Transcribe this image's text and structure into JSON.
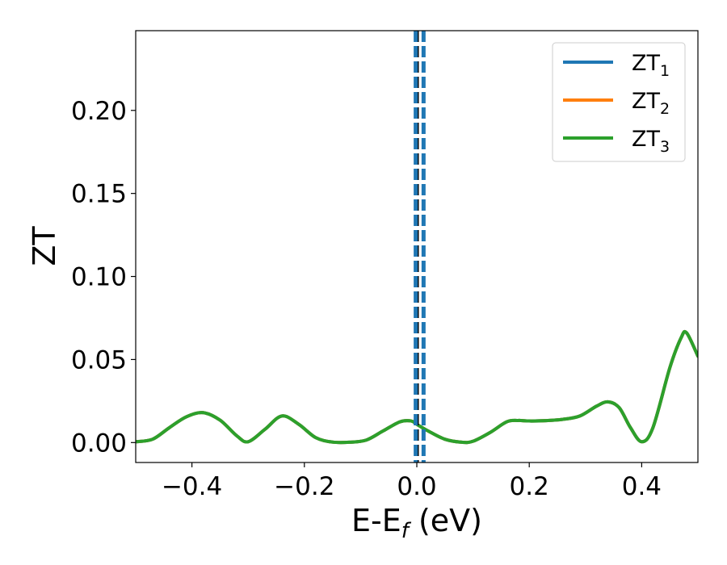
{
  "chart_data": {
    "type": "line",
    "xlabel": {
      "main": "E-E",
      "sub": "f",
      "suffix": " (eV)"
    },
    "ylabel": "ZT",
    "xlim": [
      -0.5,
      0.5
    ],
    "ylim": [
      -0.012,
      0.248
    ],
    "xticks": [
      -0.4,
      -0.2,
      0.0,
      0.2,
      0.4
    ],
    "xtick_labels": [
      "−0.4",
      "−0.2",
      "0.0",
      "0.2",
      "0.4"
    ],
    "yticks": [
      0.0,
      0.05,
      0.1,
      0.15,
      0.2
    ],
    "ytick_labels": [
      "0.00",
      "0.05",
      "0.10",
      "0.15",
      "0.20"
    ],
    "grid": false,
    "legend_position": "top-right",
    "vlines": [
      {
        "x": 0.0,
        "style": "dashed",
        "color": "#000000"
      },
      {
        "x": -0.002,
        "style": "dashed",
        "color": "#1f77b4"
      },
      {
        "x": 0.012,
        "style": "dashed",
        "color": "#1f77b4"
      }
    ],
    "series": [
      {
        "name": "ZT",
        "sub": "1",
        "color": "#1f77b4",
        "x": [
          -0.5,
          -0.47,
          -0.44,
          -0.41,
          -0.38,
          -0.35,
          -0.32,
          -0.3,
          -0.27,
          -0.24,
          -0.21,
          -0.18,
          -0.15,
          -0.12,
          -0.09,
          -0.06,
          -0.03,
          -0.01,
          0.0,
          0.02,
          0.05,
          0.08,
          0.1,
          0.13,
          0.16,
          0.18,
          0.2,
          0.23,
          0.26,
          0.29,
          0.32,
          0.34,
          0.36,
          0.38,
          0.4,
          0.42,
          0.45,
          0.47,
          0.48,
          0.5
        ],
        "y": [
          0.0005,
          0.002,
          0.009,
          0.0155,
          0.018,
          0.0135,
          0.004,
          0.0005,
          0.008,
          0.016,
          0.011,
          0.003,
          0.0003,
          0.0002,
          0.0015,
          0.007,
          0.0125,
          0.013,
          0.011,
          0.007,
          0.002,
          0.0002,
          0.0008,
          0.006,
          0.0125,
          0.0133,
          0.013,
          0.0132,
          0.014,
          0.016,
          0.022,
          0.0245,
          0.021,
          0.009,
          0.0005,
          0.009,
          0.045,
          0.063,
          0.066,
          0.052
        ]
      },
      {
        "name": "ZT",
        "sub": "2",
        "color": "#ff7f0e",
        "x": [
          -0.5,
          -0.47,
          -0.44,
          -0.41,
          -0.38,
          -0.35,
          -0.32,
          -0.3,
          -0.27,
          -0.24,
          -0.21,
          -0.18,
          -0.15,
          -0.12,
          -0.09,
          -0.06,
          -0.03,
          -0.01,
          0.0,
          0.02,
          0.05,
          0.08,
          0.1,
          0.13,
          0.16,
          0.18,
          0.2,
          0.23,
          0.26,
          0.29,
          0.32,
          0.34,
          0.36,
          0.38,
          0.4,
          0.42,
          0.45,
          0.47,
          0.48,
          0.5
        ],
        "y": [
          0.0005,
          0.002,
          0.009,
          0.0155,
          0.018,
          0.0135,
          0.004,
          0.0005,
          0.008,
          0.016,
          0.011,
          0.003,
          0.0003,
          0.0002,
          0.0015,
          0.007,
          0.0125,
          0.013,
          0.011,
          0.007,
          0.002,
          0.0002,
          0.0008,
          0.006,
          0.0125,
          0.0133,
          0.013,
          0.0132,
          0.014,
          0.016,
          0.022,
          0.0245,
          0.021,
          0.009,
          0.0005,
          0.009,
          0.045,
          0.063,
          0.066,
          0.052
        ]
      },
      {
        "name": "ZT",
        "sub": "3",
        "color": "#2ca02c",
        "x": [
          -0.5,
          -0.47,
          -0.44,
          -0.41,
          -0.38,
          -0.35,
          -0.32,
          -0.3,
          -0.27,
          -0.24,
          -0.21,
          -0.18,
          -0.15,
          -0.12,
          -0.09,
          -0.06,
          -0.03,
          -0.01,
          0.0,
          0.02,
          0.05,
          0.08,
          0.1,
          0.13,
          0.16,
          0.18,
          0.2,
          0.23,
          0.26,
          0.29,
          0.32,
          0.34,
          0.36,
          0.38,
          0.4,
          0.42,
          0.45,
          0.47,
          0.48,
          0.5
        ],
        "y": [
          0.0005,
          0.002,
          0.009,
          0.0155,
          0.018,
          0.0135,
          0.004,
          0.0005,
          0.008,
          0.016,
          0.011,
          0.003,
          0.0003,
          0.0002,
          0.0015,
          0.007,
          0.0125,
          0.013,
          0.011,
          0.007,
          0.002,
          0.0002,
          0.0008,
          0.006,
          0.0125,
          0.0133,
          0.013,
          0.0132,
          0.014,
          0.016,
          0.022,
          0.0245,
          0.021,
          0.009,
          0.0005,
          0.009,
          0.045,
          0.063,
          0.066,
          0.052
        ]
      }
    ]
  }
}
